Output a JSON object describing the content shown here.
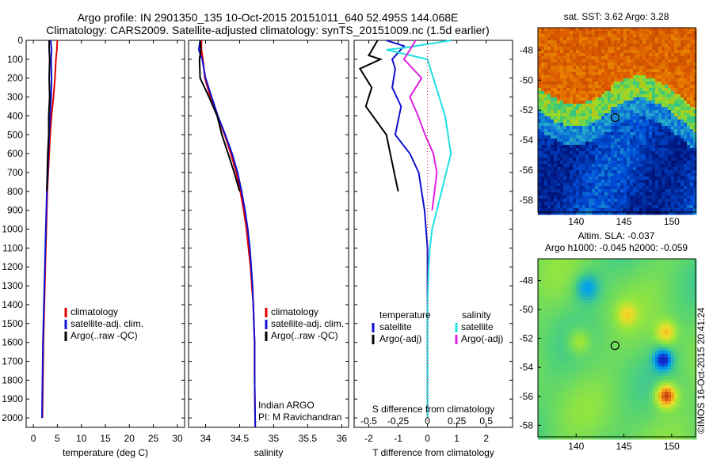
{
  "header": {
    "line1": "Argo profile: IN 2901350_135 10-Oct-2015 20151011_640 52.495S 144.068E",
    "line2": "Climatology: CARS2009. Satellite-adjusted climatology: synTS_20151009.nc (1.5d earlier)"
  },
  "colors": {
    "climatology": "#e00000",
    "satellite": "#1010d0",
    "argo": "#000000",
    "sat_salinity": "#20e0e0",
    "argo_salinity": "#e020e0"
  },
  "watermark": "©IMOS 16-Oct-2015 20:41:24",
  "chart_data": [
    {
      "type": "line",
      "panel": "temperature",
      "xlabel": "temperature (deg C)",
      "ylabel": "",
      "xlim": [
        -1.5,
        31.5
      ],
      "ylim": [
        2050,
        0
      ],
      "xticks": [
        0,
        5,
        10,
        15,
        20,
        25,
        30
      ],
      "yticks": [
        0,
        100,
        200,
        300,
        400,
        500,
        600,
        700,
        800,
        900,
        1000,
        1100,
        1200,
        1300,
        1400,
        1500,
        1600,
        1700,
        1800,
        1900,
        2000
      ],
      "legend": [
        "climatology",
        "satellite-adj. clim.",
        "Argo(..raw -QC)"
      ],
      "legend_position": "center",
      "series": [
        {
          "name": "climatology",
          "color": "#e00000",
          "x": [
            5.0,
            4.9,
            4.7,
            4.5,
            4.2,
            3.8,
            3.5,
            3.3,
            3.1,
            2.9,
            2.8,
            2.7,
            2.6,
            2.5,
            2.4,
            2.3,
            2.2,
            2.1,
            2.0,
            1.9
          ],
          "y": [
            0,
            50,
            100,
            200,
            300,
            400,
            500,
            600,
            700,
            800,
            900,
            1000,
            1100,
            1200,
            1300,
            1400,
            1500,
            1600,
            1800,
            2000
          ]
        },
        {
          "name": "satellite-adj. clim.",
          "color": "#1010d0",
          "x": [
            3.6,
            3.8,
            3.7,
            3.8,
            3.7,
            3.5,
            3.3,
            3.1,
            3.0,
            2.8,
            2.7,
            2.6,
            2.5,
            2.4,
            2.3,
            2.2,
            2.1,
            2.0,
            1.9,
            1.8
          ],
          "y": [
            0,
            50,
            100,
            200,
            300,
            400,
            500,
            600,
            700,
            800,
            900,
            1000,
            1100,
            1200,
            1300,
            1400,
            1500,
            1600,
            1800,
            2000
          ]
        },
        {
          "name": "Argo(..raw -QC)",
          "color": "#000000",
          "x": [
            3.3,
            3.3,
            3.4,
            3.3,
            3.4,
            3.2,
            3.2,
            3.0,
            2.9,
            2.8
          ],
          "y": [
            0,
            50,
            100,
            200,
            300,
            400,
            500,
            600,
            700,
            800
          ]
        }
      ]
    },
    {
      "type": "line",
      "panel": "salinity",
      "xlabel": "salinity",
      "ylabel": "",
      "xlim": [
        33.75,
        36.1
      ],
      "ylim": [
        2050,
        0
      ],
      "xticks": [
        34,
        34.5,
        35,
        35.5,
        36
      ],
      "legend": [
        "climatology",
        "satellite-adj. clim.",
        "Argo(..raw -QC)"
      ],
      "legend_position": "center",
      "annotation": [
        "Indian ARGO",
        "PI: M Ravichandran"
      ],
      "series": [
        {
          "name": "climatology",
          "color": "#e00000",
          "x": [
            33.94,
            33.94,
            33.96,
            33.99,
            34.07,
            34.17,
            34.28,
            34.37,
            34.45,
            34.51,
            34.56,
            34.6,
            34.63,
            34.66,
            34.68,
            34.7,
            34.71,
            34.72,
            34.72,
            34.73
          ],
          "y": [
            0,
            50,
            100,
            200,
            300,
            400,
            500,
            600,
            700,
            800,
            900,
            1000,
            1100,
            1200,
            1300,
            1400,
            1500,
            1600,
            1800,
            2050
          ]
        },
        {
          "name": "satellite-adj. clim.",
          "color": "#1010d0",
          "x": [
            33.92,
            33.9,
            33.95,
            34.0,
            34.09,
            34.18,
            34.29,
            34.39,
            34.47,
            34.53,
            34.58,
            34.62,
            34.65,
            34.67,
            34.69,
            34.7,
            34.71,
            34.72,
            34.72,
            34.73
          ],
          "y": [
            0,
            50,
            100,
            200,
            300,
            400,
            500,
            600,
            700,
            800,
            900,
            1000,
            1100,
            1200,
            1300,
            1400,
            1500,
            1600,
            1800,
            2050
          ]
        },
        {
          "name": "Argo(..raw -QC)",
          "color": "#000000",
          "x": [
            33.92,
            33.93,
            33.91,
            33.92,
            34.05,
            34.17,
            34.24,
            34.33,
            34.42,
            34.5
          ],
          "y": [
            0,
            50,
            100,
            200,
            300,
            400,
            500,
            600,
            700,
            800
          ]
        }
      ]
    },
    {
      "type": "line",
      "panel": "difference",
      "xlabel": "T difference from climatology",
      "xlabel_top": "S difference from climatology",
      "xlim": [
        -2.5,
        2.9
      ],
      "ylim": [
        2050,
        0
      ],
      "xticks_T": [
        -2,
        -1,
        0,
        1,
        2
      ],
      "xticks_S": [
        "-0.5",
        "-0.25",
        "0",
        "0.25",
        "0.5"
      ],
      "xticks_S_values": [
        -0.5,
        -0.25,
        0,
        0.25,
        0.5
      ],
      "legend_T": {
        "title": "temperature",
        "items": [
          "satellite",
          "Argo(-adj)"
        ]
      },
      "legend_S": {
        "title": "salinity",
        "items": [
          "satellite",
          "Argo(-adj)"
        ]
      },
      "series": [
        {
          "name": "temperature satellite",
          "color": "#1010d0",
          "x": [
            -1.4,
            -0.8,
            -1.2,
            -1.1,
            -1.2,
            -0.9,
            -1.1,
            -0.6,
            -0.3,
            -0.2,
            -0.1,
            -0.05,
            0,
            0,
            0,
            0,
            0
          ],
          "y": [
            0,
            30,
            100,
            150,
            250,
            350,
            500,
            600,
            700,
            800,
            900,
            1000,
            1100,
            1200,
            1400,
            1700,
            2000
          ]
        },
        {
          "name": "temperature Argo(-adj)",
          "color": "#000000",
          "x": [
            -1.7,
            -2.0,
            -1.6,
            -2.3,
            -1.9,
            -2.1,
            -1.4,
            -1.2,
            -1.0
          ],
          "y": [
            0,
            80,
            100,
            150,
            250,
            350,
            500,
            650,
            800
          ]
        },
        {
          "name": "salinity satellite",
          "color": "#20e0e0",
          "x": [
            0.2,
            -0.2,
            -0.35,
            0,
            0.05,
            0.1,
            0.15,
            0.2,
            0.12,
            0.08,
            0.04,
            0.02,
            0.01,
            0,
            0,
            0
          ],
          "y": [
            0,
            40,
            50,
            100,
            200,
            300,
            400,
            600,
            800,
            900,
            1000,
            1100,
            1200,
            1400,
            1700,
            2000
          ]
        },
        {
          "name": "salinity Argo(-adj)",
          "color": "#e020e0",
          "x": [
            -0.1,
            -0.15,
            -0.2,
            -0.05,
            -0.15,
            -0.08,
            -0.02,
            0.05,
            0.08,
            0.06,
            0.04
          ],
          "y": [
            0,
            50,
            100,
            200,
            300,
            400,
            500,
            600,
            700,
            800,
            900
          ]
        }
      ]
    },
    {
      "type": "heatmap",
      "panel": "sst_map",
      "title": "sat. SST: 3.62 Argo: 3.28",
      "xticks": [
        "140",
        "145",
        "150"
      ],
      "yticks": [
        "-48",
        "-50",
        "-52",
        "-54",
        "-56",
        "-58"
      ],
      "xlim": [
        136,
        152.5
      ],
      "ylim": [
        -58.8,
        -46.5
      ],
      "marker": {
        "lon": 144.068,
        "lat": -52.495
      }
    },
    {
      "type": "heatmap",
      "panel": "sla_map",
      "title": "Altim. SLA: -0.037",
      "subtitle": "Argo h1000: -0.045 h2000: -0.059",
      "xticks": [
        "140",
        "145",
        "150"
      ],
      "yticks": [
        "-48",
        "-50",
        "-52",
        "-54",
        "-56",
        "-58"
      ],
      "xlim": [
        136,
        152.5
      ],
      "ylim": [
        -58.8,
        -46.5
      ],
      "marker": {
        "lon": 144.068,
        "lat": -52.495
      }
    }
  ]
}
